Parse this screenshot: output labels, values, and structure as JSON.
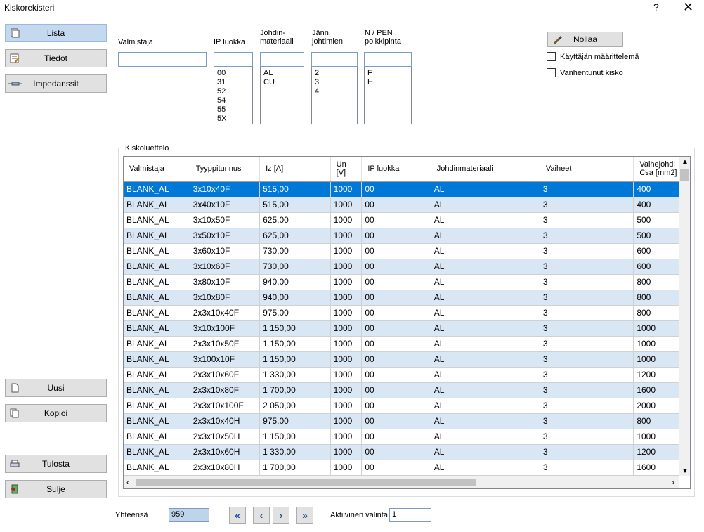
{
  "window": {
    "title": "Kiskorekisteri",
    "help": "?",
    "close": "✕"
  },
  "nav": {
    "lista": "Lista",
    "tiedot": "Tiedot",
    "impedanssit": "Impedanssit",
    "uusi": "Uusi",
    "kopioi": "Kopioi",
    "tulosta": "Tulosta",
    "sulje": "Sulje"
  },
  "filters": {
    "valmistaja": {
      "label": "Valmistaja",
      "value": ""
    },
    "ip": {
      "label": "IP luokka",
      "value": "",
      "options": [
        "00",
        "31",
        "52",
        "54",
        "55",
        "5X"
      ]
    },
    "johdin": {
      "label": "Johdin-\nmateriaali",
      "value": "",
      "options": [
        "AL",
        "CU"
      ]
    },
    "jann": {
      "label": "Jänn.\njohtimien",
      "value": "",
      "options": [
        "2",
        "3",
        "4"
      ]
    },
    "npen": {
      "label": "N / PEN\npoikkipinta",
      "value": "",
      "options": [
        "F",
        "H"
      ]
    }
  },
  "reset": {
    "label": "Nollaa"
  },
  "checks": {
    "user": "Käyttäjän määrittelemä",
    "old": "Vanhentunut kisko"
  },
  "grid": {
    "group_label": "Kiskoluettelo",
    "columns": [
      "Valmistaja",
      "Tyyppitunnus",
      "Iz [A]",
      "Un\n[V]",
      "IP luokka",
      "Johdinmateriaali",
      "Vaiheet",
      "Vaihejohdi\nCsa [mm2]"
    ],
    "rows": [
      [
        "BLANK_AL",
        "3x10x40F",
        "515,00",
        "1000",
        "00",
        "AL",
        "3",
        "400"
      ],
      [
        "BLANK_AL",
        "3x40x10F",
        "515,00",
        "1000",
        "00",
        "AL",
        "3",
        "400"
      ],
      [
        "BLANK_AL",
        "3x10x50F",
        "625,00",
        "1000",
        "00",
        "AL",
        "3",
        "500"
      ],
      [
        "BLANK_AL",
        "3x50x10F",
        "625,00",
        "1000",
        "00",
        "AL",
        "3",
        "500"
      ],
      [
        "BLANK_AL",
        "3x60x10F",
        "730,00",
        "1000",
        "00",
        "AL",
        "3",
        "600"
      ],
      [
        "BLANK_AL",
        "3x10x60F",
        "730,00",
        "1000",
        "00",
        "AL",
        "3",
        "600"
      ],
      [
        "BLANK_AL",
        "3x80x10F",
        "940,00",
        "1000",
        "00",
        "AL",
        "3",
        "800"
      ],
      [
        "BLANK_AL",
        "3x10x80F",
        "940,00",
        "1000",
        "00",
        "AL",
        "3",
        "800"
      ],
      [
        "BLANK_AL",
        "2x3x10x40F",
        "975,00",
        "1000",
        "00",
        "AL",
        "3",
        "800"
      ],
      [
        "BLANK_AL",
        "3x10x100F",
        "1 150,00",
        "1000",
        "00",
        "AL",
        "3",
        "1000"
      ],
      [
        "BLANK_AL",
        "2x3x10x50F",
        "1 150,00",
        "1000",
        "00",
        "AL",
        "3",
        "1000"
      ],
      [
        "BLANK_AL",
        "3x100x10F",
        "1 150,00",
        "1000",
        "00",
        "AL",
        "3",
        "1000"
      ],
      [
        "BLANK_AL",
        "2x3x10x60F",
        "1 330,00",
        "1000",
        "00",
        "AL",
        "3",
        "1200"
      ],
      [
        "BLANK_AL",
        "2x3x10x80F",
        "1 700,00",
        "1000",
        "00",
        "AL",
        "3",
        "1600"
      ],
      [
        "BLANK_AL",
        "2x3x10x100F",
        "2 050,00",
        "1000",
        "00",
        "AL",
        "3",
        "2000"
      ],
      [
        "BLANK_AL",
        "2x3x10x40H",
        "975,00",
        "1000",
        "00",
        "AL",
        "3",
        "800"
      ],
      [
        "BLANK_AL",
        "2x3x10x50H",
        "1 150,00",
        "1000",
        "00",
        "AL",
        "3",
        "1000"
      ],
      [
        "BLANK_AL",
        "2x3x10x60H",
        "1 330,00",
        "1000",
        "00",
        "AL",
        "3",
        "1200"
      ],
      [
        "BLANK_AL",
        "2x3x10x80H",
        "1 700,00",
        "1000",
        "00",
        "AL",
        "3",
        "1600"
      ]
    ]
  },
  "footer": {
    "total_label": "Yhteensä",
    "total_value": "959",
    "active_label": "Aktiivinen valinta",
    "active_value": "1"
  },
  "colors": {
    "selected_row": "#0078d7",
    "alt_row": "#d9e6f4",
    "active_nav": "#c4d8ef"
  }
}
